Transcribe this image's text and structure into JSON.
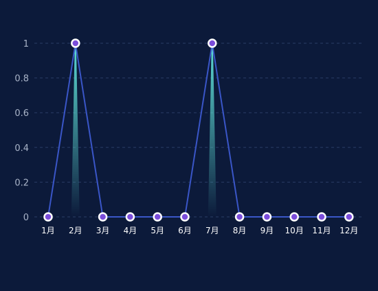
{
  "colors": {
    "background": "#0c1a3a",
    "line": "#3a56c8",
    "marker_fill": "#7b4ddb",
    "marker_stroke": "#ffffff",
    "spike_gradient_top": "#5fe0d8",
    "gridline": "#2a3d66",
    "y_tick_text": "#a9b4c8",
    "x_tick_text": "#ffffff"
  },
  "chart_data": {
    "type": "line",
    "categories": [
      "1月",
      "2月",
      "3月",
      "4月",
      "5月",
      "6月",
      "7月",
      "8月",
      "9月",
      "10月",
      "11月",
      "12月"
    ],
    "series": [
      {
        "values": [
          0,
          1,
          0,
          0,
          0,
          0,
          1,
          0,
          0,
          0,
          0,
          0
        ]
      }
    ],
    "yticks": [
      "0",
      "0.2",
      "0.4",
      "0.6",
      "0.8",
      "1"
    ],
    "ylim": [
      0,
      1
    ],
    "grid": true,
    "legend": "none"
  }
}
